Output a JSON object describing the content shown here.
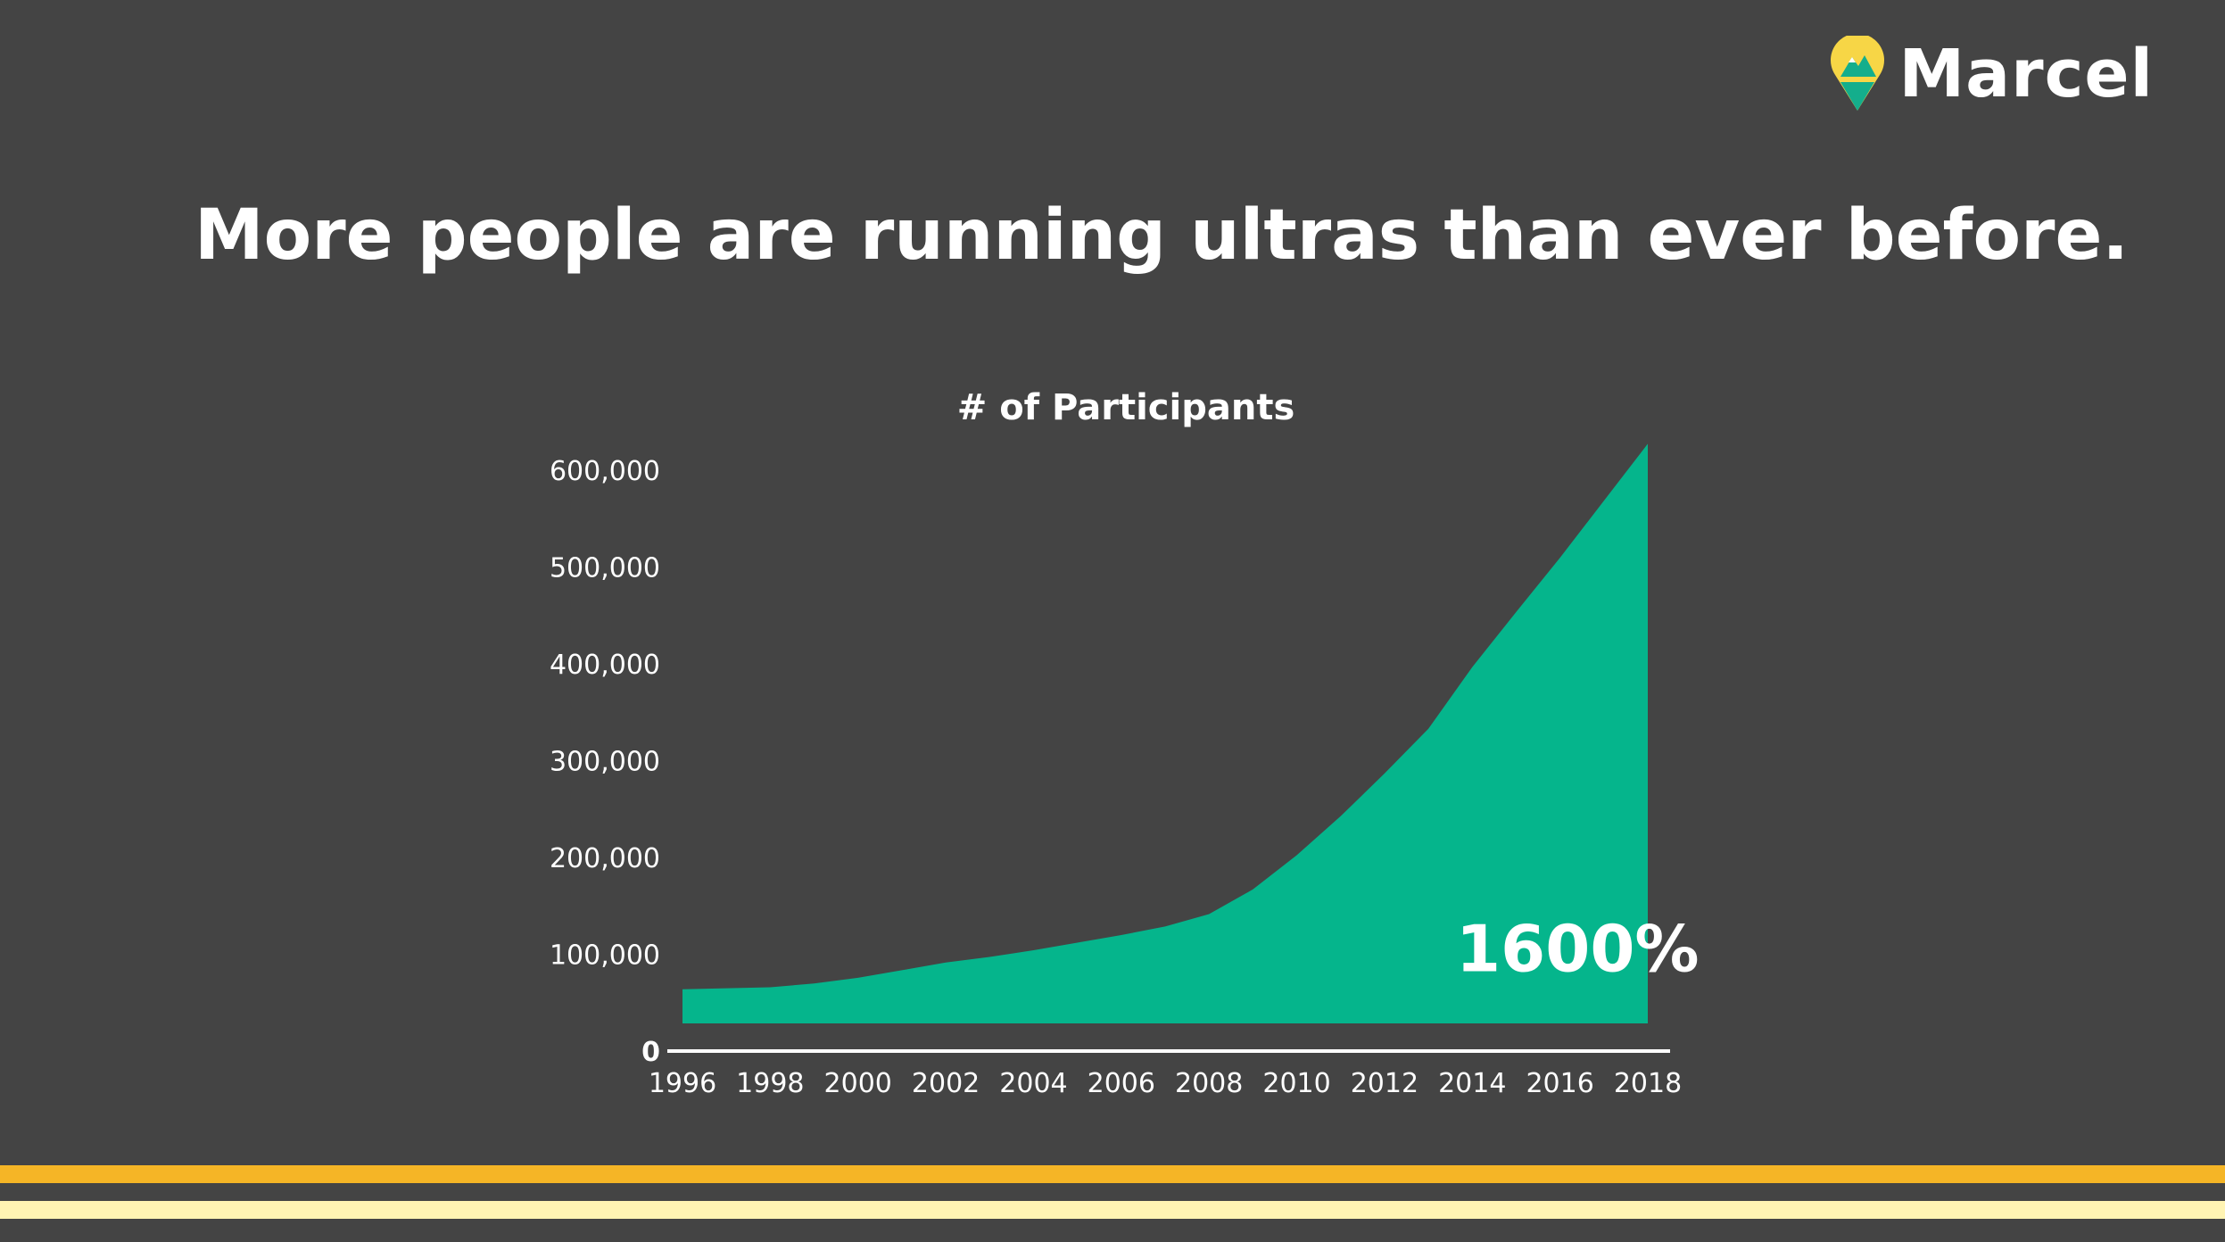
{
  "brand": {
    "name": "Marcel",
    "logo_icon": "map-pin-mountain-icon"
  },
  "headline": "More people are running ultras than ever before.",
  "colors": {
    "background": "#444444",
    "area": "#05B58C",
    "text": "#FFFFFF",
    "stripe_gold": "#F5B526",
    "stripe_cream": "#FFF4B3",
    "logo_yellow": "#F7D646",
    "logo_teal": "#14AE8C"
  },
  "chart_data": {
    "type": "area",
    "title": "# of Participants",
    "xlabel": "",
    "ylabel": "",
    "grid": false,
    "legend": "none",
    "xlim": [
      1996,
      2018
    ],
    "ylim": [
      0,
      600000
    ],
    "y_ticks": [
      0,
      100000,
      200000,
      300000,
      400000,
      500000,
      600000
    ],
    "y_tick_labels": [
      "0",
      "100,000",
      "200,000",
      "300,000",
      "400,000",
      "500,000",
      "600,000"
    ],
    "x_ticks": [
      1996,
      1998,
      2000,
      2002,
      2004,
      2006,
      2008,
      2010,
      2012,
      2014,
      2016,
      2018
    ],
    "x_tick_labels": [
      "1996",
      "1998",
      "2000",
      "2002",
      "2004",
      "2006",
      "2008",
      "2010",
      "2012",
      "2014",
      "2016",
      "2018"
    ],
    "series": [
      {
        "name": "Participants",
        "x": [
          1996,
          1997,
          1998,
          1999,
          2000,
          2001,
          2002,
          2003,
          2004,
          2005,
          2006,
          2007,
          2008,
          2009,
          2010,
          2011,
          2012,
          2013,
          2014,
          2015,
          2016,
          2017,
          2018
        ],
        "values": [
          36000,
          37000,
          38000,
          42000,
          48000,
          56000,
          64000,
          70000,
          77000,
          85000,
          93000,
          102000,
          115000,
          141000,
          177000,
          218000,
          263000,
          310000,
          375000,
          433000,
          490000,
          550000,
          610000
        ]
      }
    ],
    "annotations": [
      {
        "text": "1600%",
        "anchor_year": 2016.4,
        "anchor_value": 130000
      }
    ]
  }
}
